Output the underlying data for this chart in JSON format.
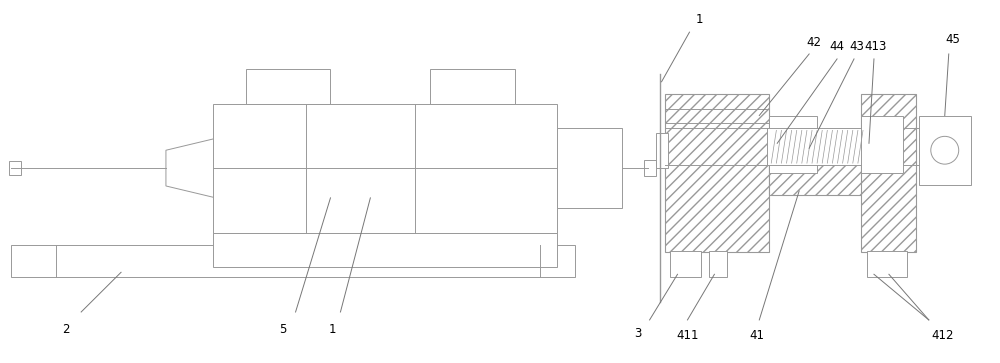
{
  "bg_color": "#ffffff",
  "line_color": "#999999",
  "label_color": "#000000",
  "fig_width": 10.0,
  "fig_height": 3.63
}
